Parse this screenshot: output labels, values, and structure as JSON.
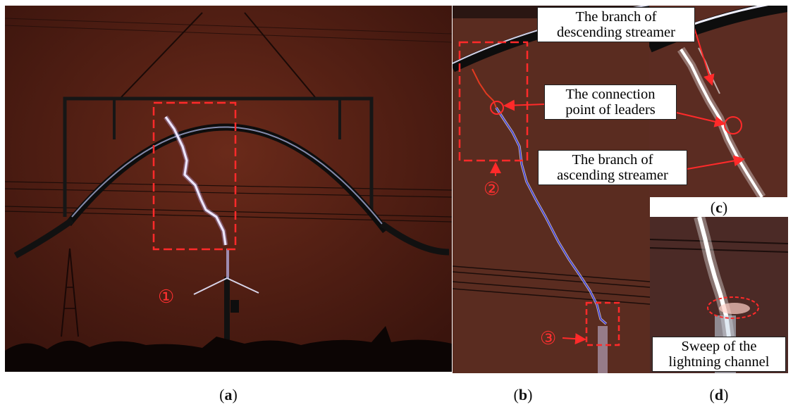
{
  "panels": {
    "a": {
      "caption_open": "(",
      "caption_letter": "a",
      "caption_close": ")"
    },
    "b": {
      "caption_open": "(",
      "caption_letter": "b",
      "caption_close": ")"
    },
    "c": {
      "caption_open": "(",
      "caption_letter": "c",
      "caption_close": ")"
    },
    "d": {
      "caption_open": "(",
      "caption_letter": "d",
      "caption_close": ")"
    }
  },
  "markers": {
    "one": "①",
    "two": "②",
    "three": "③"
  },
  "callouts": {
    "descending_line1": "The branch of",
    "descending_line2": "descending streamer",
    "connection_line1": "The connection",
    "connection_line2": "point of leaders",
    "ascending_line1": "The branch of",
    "ascending_line2": "ascending streamer",
    "sweep_line1": "Sweep of the",
    "sweep_line2": "lightning channel"
  },
  "colors": {
    "annotation_red": "#ff2a2a",
    "upward_leader": "#e23a20",
    "downward_leader": "#3a3ad8",
    "background_red": "#5a2a1e"
  }
}
